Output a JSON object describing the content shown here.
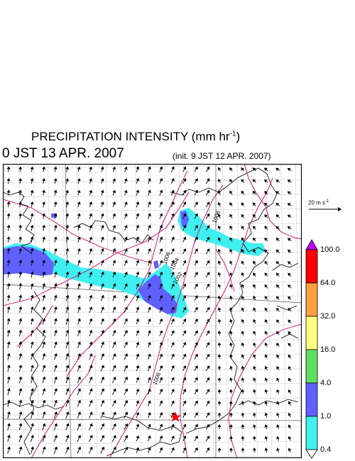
{
  "title": {
    "text": "PRECIPITATION INTENSITY (mm hr",
    "unit_sup": "-1",
    "close": ")"
  },
  "valid_time": "0 JST 13 APR. 2007",
  "init_time": "(init. 9 JST 12 APR. 2007)",
  "reference_vector": {
    "label": "20 m s",
    "unit_sup": "-1"
  },
  "colorbar": {
    "ticks": [
      "100.0",
      "64.0",
      "32.0",
      "16.0",
      "4.0",
      "1.0",
      "0.4"
    ],
    "colors": [
      "#c000ff",
      "#ff0000",
      "#ffa040",
      "#ffff80",
      "#60e060",
      "#6060ff",
      "#40f0f0",
      "#ffffff"
    ]
  },
  "map": {
    "isobar_labels": [
      "1006",
      "1006",
      "1004",
      "1002",
      "1006"
    ],
    "isobar_color": "#d0006f",
    "marker": "red-star"
  }
}
